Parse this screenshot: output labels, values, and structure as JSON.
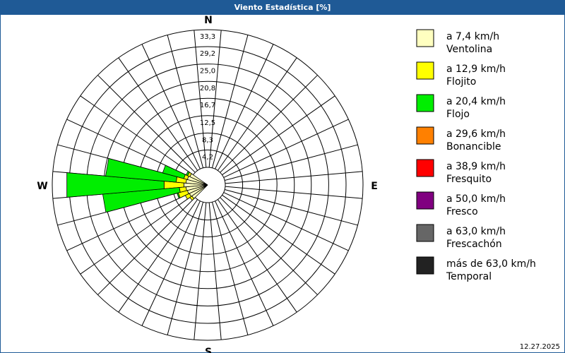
{
  "chart_data": {
    "type": "windrose",
    "title": "Viento Estadística [%]",
    "x": [
      0,
      10,
      20,
      30,
      40,
      50,
      60,
      70,
      80,
      90,
      100,
      110,
      120,
      130,
      140,
      150,
      160,
      170,
      180,
      190,
      200,
      210,
      220,
      230,
      240,
      250,
      260,
      270,
      280,
      290,
      300,
      310,
      320,
      330,
      340,
      350
    ],
    "compass": [
      {
        "value": 0,
        "label": "N"
      },
      {
        "value": 90,
        "label": "E"
      },
      {
        "value": 180,
        "label": "S"
      },
      {
        "value": 270,
        "label": "W"
      }
    ],
    "rlim": [
      0,
      33.3
    ],
    "rticks": [
      {
        "value": 4.2,
        "label": "4,2"
      },
      {
        "value": 8.3,
        "label": "8,3"
      },
      {
        "value": 12.5,
        "label": "12,5"
      },
      {
        "value": 16.7,
        "label": "16,7"
      },
      {
        "value": 20.8,
        "label": "20,8"
      },
      {
        "value": 25.0,
        "label": "25,0"
      },
      {
        "value": 29.2,
        "label": "29,2"
      },
      {
        "value": 33.3,
        "label": "33,3"
      }
    ],
    "series": [
      {
        "name": "a 7,4 km/h",
        "description": "Ventolina",
        "color": "#ffffc0",
        "values": [
          0,
          0,
          0,
          0,
          0,
          0,
          0,
          0,
          0,
          0,
          0,
          0,
          0,
          0,
          0,
          0,
          0,
          0,
          0,
          0,
          0,
          0,
          0,
          0.4,
          0.6,
          0.8,
          1.0,
          1.5,
          1.0,
          0.8,
          0.5,
          0,
          0,
          0,
          0,
          0
        ]
      },
      {
        "name": "a 12,9 km/h",
        "description": "Flojito",
        "color": "#ffff00",
        "values": [
          0,
          0,
          0,
          0,
          0,
          0,
          0,
          0,
          0,
          0,
          0,
          0,
          0,
          0,
          0,
          0,
          0,
          0,
          0,
          0,
          0,
          0,
          0,
          0.6,
          1.1,
          2.3,
          1.6,
          4.8,
          2.4,
          0.9,
          0.6,
          0,
          0,
          0,
          0,
          0
        ]
      },
      {
        "name": "a 20,4 km/h",
        "description": "Flojo",
        "color": "#00ee00",
        "values": [
          0,
          0,
          0,
          0,
          0,
          0,
          0,
          0,
          0,
          0,
          0,
          0,
          0,
          0,
          0,
          0,
          0,
          0,
          0,
          0,
          0,
          0,
          0,
          0,
          0,
          0.3,
          18.6,
          23.6,
          17.1,
          5.3,
          0.4,
          0,
          0,
          0,
          0,
          0
        ]
      },
      {
        "name": "a 29,6 km/h",
        "description": "Bonancible",
        "color": "#ff8000",
        "values": [
          0,
          0,
          0,
          0,
          0,
          0,
          0,
          0,
          0,
          0,
          0,
          0,
          0,
          0,
          0,
          0,
          0,
          0,
          0,
          0,
          0,
          0,
          0,
          0,
          0,
          0,
          0,
          0,
          0,
          0,
          0,
          0,
          0,
          0,
          0,
          0
        ]
      },
      {
        "name": "a 38,9 km/h",
        "description": "Fresquito",
        "color": "#ff0000",
        "values": [
          0,
          0,
          0,
          0,
          0,
          0,
          0,
          0,
          0,
          0,
          0,
          0,
          0,
          0,
          0,
          0,
          0,
          0,
          0,
          0,
          0,
          0,
          0,
          0,
          0,
          0,
          0,
          0,
          0,
          0,
          0,
          0,
          0,
          0,
          0,
          0
        ]
      },
      {
        "name": "a 50,0 km/h",
        "description": "Fresco",
        "color": "#800080",
        "values": [
          0,
          0,
          0,
          0,
          0,
          0,
          0,
          0,
          0,
          0,
          0,
          0,
          0,
          0,
          0,
          0,
          0,
          0,
          0,
          0,
          0,
          0,
          0,
          0,
          0,
          0,
          0,
          0,
          0,
          0,
          0,
          0,
          0,
          0,
          0,
          0
        ]
      },
      {
        "name": "a 63,0 km/h",
        "description": "Frescachón",
        "color": "#666666",
        "values": [
          0,
          0,
          0,
          0,
          0,
          0,
          0,
          0,
          0,
          0,
          0,
          0,
          0,
          0,
          0,
          0,
          0,
          0,
          0,
          0,
          0,
          0,
          0,
          0,
          0,
          0,
          0,
          0,
          0,
          0,
          0,
          0,
          0,
          0,
          0,
          0
        ]
      },
      {
        "name": "más de 63,0 km/h",
        "description": "Temporal",
        "color": "#222222",
        "values": [
          0,
          0,
          0,
          0,
          0,
          0,
          0,
          0,
          0,
          0,
          0,
          0,
          0,
          0,
          0,
          0,
          0,
          0,
          0,
          0,
          0,
          0,
          0,
          0,
          0,
          0,
          0,
          0,
          0,
          0,
          0,
          0,
          0,
          0,
          0,
          0
        ]
      }
    ]
  },
  "footer": {
    "date": "12.27.2025"
  }
}
